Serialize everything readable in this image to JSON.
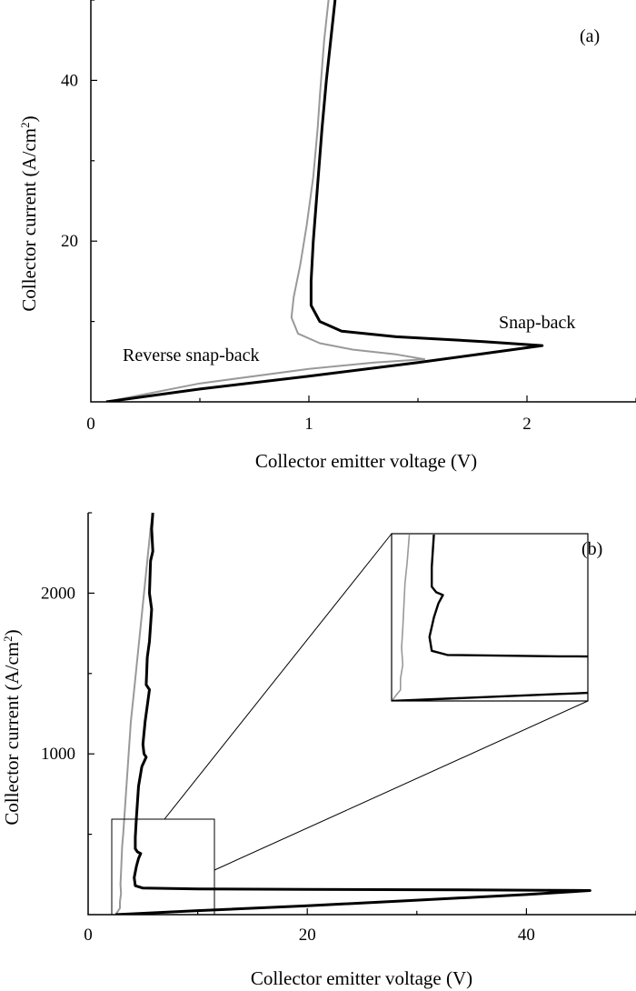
{
  "panels": [
    {
      "label": "(a)",
      "chart_data": {
        "type": "line",
        "xlabel": "Collector emitter voltage (V)",
        "ylabel_main": "Collector current (A/cm",
        "ylabel_sup": "2",
        "ylabel_end": ")",
        "xlim": [
          0,
          2.5
        ],
        "ylim": [
          0,
          50
        ],
        "xticks": [
          0,
          1,
          2
        ],
        "yticks": [
          20,
          40
        ],
        "xtick_labels": [
          "0",
          "1",
          "2"
        ],
        "ytick_labels": [
          "20",
          "40"
        ],
        "annotations": [
          {
            "text": "Snap-back",
            "x": 2.15,
            "y": 10.5
          },
          {
            "text": "Reverse snap-back",
            "x": 0.88,
            "y": 6.0
          }
        ],
        "series": [
          {
            "color": "#999999",
            "values": [
              [
                0.07,
                0
              ],
              [
                0.5,
                2.3
              ],
              [
                1.0,
                4.1
              ],
              [
                1.3,
                4.9
              ],
              [
                1.53,
                5.3
              ],
              [
                1.4,
                5.9
              ],
              [
                1.2,
                6.5
              ],
              [
                1.05,
                7.3
              ],
              [
                0.95,
                8.5
              ],
              [
                0.92,
                10.5
              ],
              [
                0.93,
                13.0
              ],
              [
                0.96,
                17.0
              ],
              [
                0.99,
                22.0
              ],
              [
                1.02,
                28.0
              ],
              [
                1.04,
                34.0
              ],
              [
                1.05,
                38.0
              ],
              [
                1.07,
                45.0
              ],
              [
                1.09,
                50.0
              ]
            ]
          },
          {
            "color": "#000000",
            "values": [
              [
                0.07,
                0
              ],
              [
                0.5,
                1.6
              ],
              [
                1.0,
                3.2
              ],
              [
                1.5,
                4.9
              ],
              [
                1.8,
                6.0
              ],
              [
                2.07,
                7.0
              ],
              [
                1.8,
                7.5
              ],
              [
                1.4,
                8.1
              ],
              [
                1.15,
                8.8
              ],
              [
                1.05,
                10.0
              ],
              [
                1.01,
                12.0
              ],
              [
                1.01,
                15.0
              ],
              [
                1.02,
                20.0
              ],
              [
                1.04,
                27.0
              ],
              [
                1.06,
                34.0
              ],
              [
                1.08,
                40.0
              ],
              [
                1.1,
                45.0
              ],
              [
                1.12,
                50.0
              ]
            ]
          }
        ]
      }
    },
    {
      "label": "(b)",
      "chart_data": {
        "type": "line",
        "xlabel": "Collector emitter voltage (V)",
        "ylabel_main": "Collector current (A/cm",
        "ylabel_sup": "2",
        "ylabel_end": ")",
        "xlim": [
          0,
          50
        ],
        "ylim": [
          0,
          2500
        ],
        "xticks": [
          0,
          20,
          40
        ],
        "yticks": [
          1000,
          2000
        ],
        "xtick_labels": [
          "0",
          "20",
          "40"
        ],
        "ytick_labels": [
          "1000",
          "2000"
        ],
        "inset_source_box": {
          "x0": 2.5,
          "x1": 11.3,
          "y0": 0,
          "y1": 600
        },
        "series": [
          {
            "color": "#999999",
            "values": [
              [
                2.5,
                0
              ],
              [
                2.9,
                40
              ],
              [
                2.9,
                80
              ],
              [
                3.0,
                130
              ],
              [
                2.95,
                190
              ],
              [
                3.0,
                260
              ],
              [
                3.05,
                340
              ],
              [
                3.1,
                420
              ],
              [
                3.2,
                500
              ],
              [
                3.3,
                600
              ],
              [
                3.5,
                800
              ],
              [
                3.7,
                1000
              ],
              [
                3.9,
                1200
              ],
              [
                4.2,
                1400
              ],
              [
                4.5,
                1600
              ],
              [
                4.8,
                1800
              ],
              [
                5.1,
                2000
              ],
              [
                5.4,
                2200
              ],
              [
                5.7,
                2400
              ],
              [
                5.9,
                2500
              ]
            ]
          },
          {
            "color": "#000000",
            "values": [
              [
                2.5,
                0
              ],
              [
                10,
                25
              ],
              [
                20,
                55
              ],
              [
                30,
                90
              ],
              [
                40,
                125
              ],
              [
                45.8,
                150
              ],
              [
                40,
                152
              ],
              [
                30,
                155
              ],
              [
                20,
                157
              ],
              [
                10,
                160
              ],
              [
                5.0,
                165
              ],
              [
                4.3,
                180
              ],
              [
                4.2,
                230
              ],
              [
                4.4,
                300
              ],
              [
                4.6,
                350
              ],
              [
                4.8,
                380
              ],
              [
                4.5,
                390
              ],
              [
                4.3,
                410
              ],
              [
                4.3,
                480
              ],
              [
                4.4,
                600
              ],
              [
                4.6,
                800
              ],
              [
                4.9,
                920
              ],
              [
                5.3,
                980
              ],
              [
                5.1,
                1000
              ],
              [
                5.0,
                1060
              ],
              [
                5.2,
                1200
              ],
              [
                5.6,
                1400
              ],
              [
                5.3,
                1430
              ],
              [
                5.4,
                1600
              ],
              [
                5.6,
                1700
              ],
              [
                5.8,
                1900
              ],
              [
                5.6,
                2000
              ],
              [
                5.7,
                2200
              ],
              [
                5.9,
                2260
              ],
              [
                5.8,
                2400
              ],
              [
                5.9,
                2500
              ]
            ]
          }
        ]
      }
    }
  ]
}
